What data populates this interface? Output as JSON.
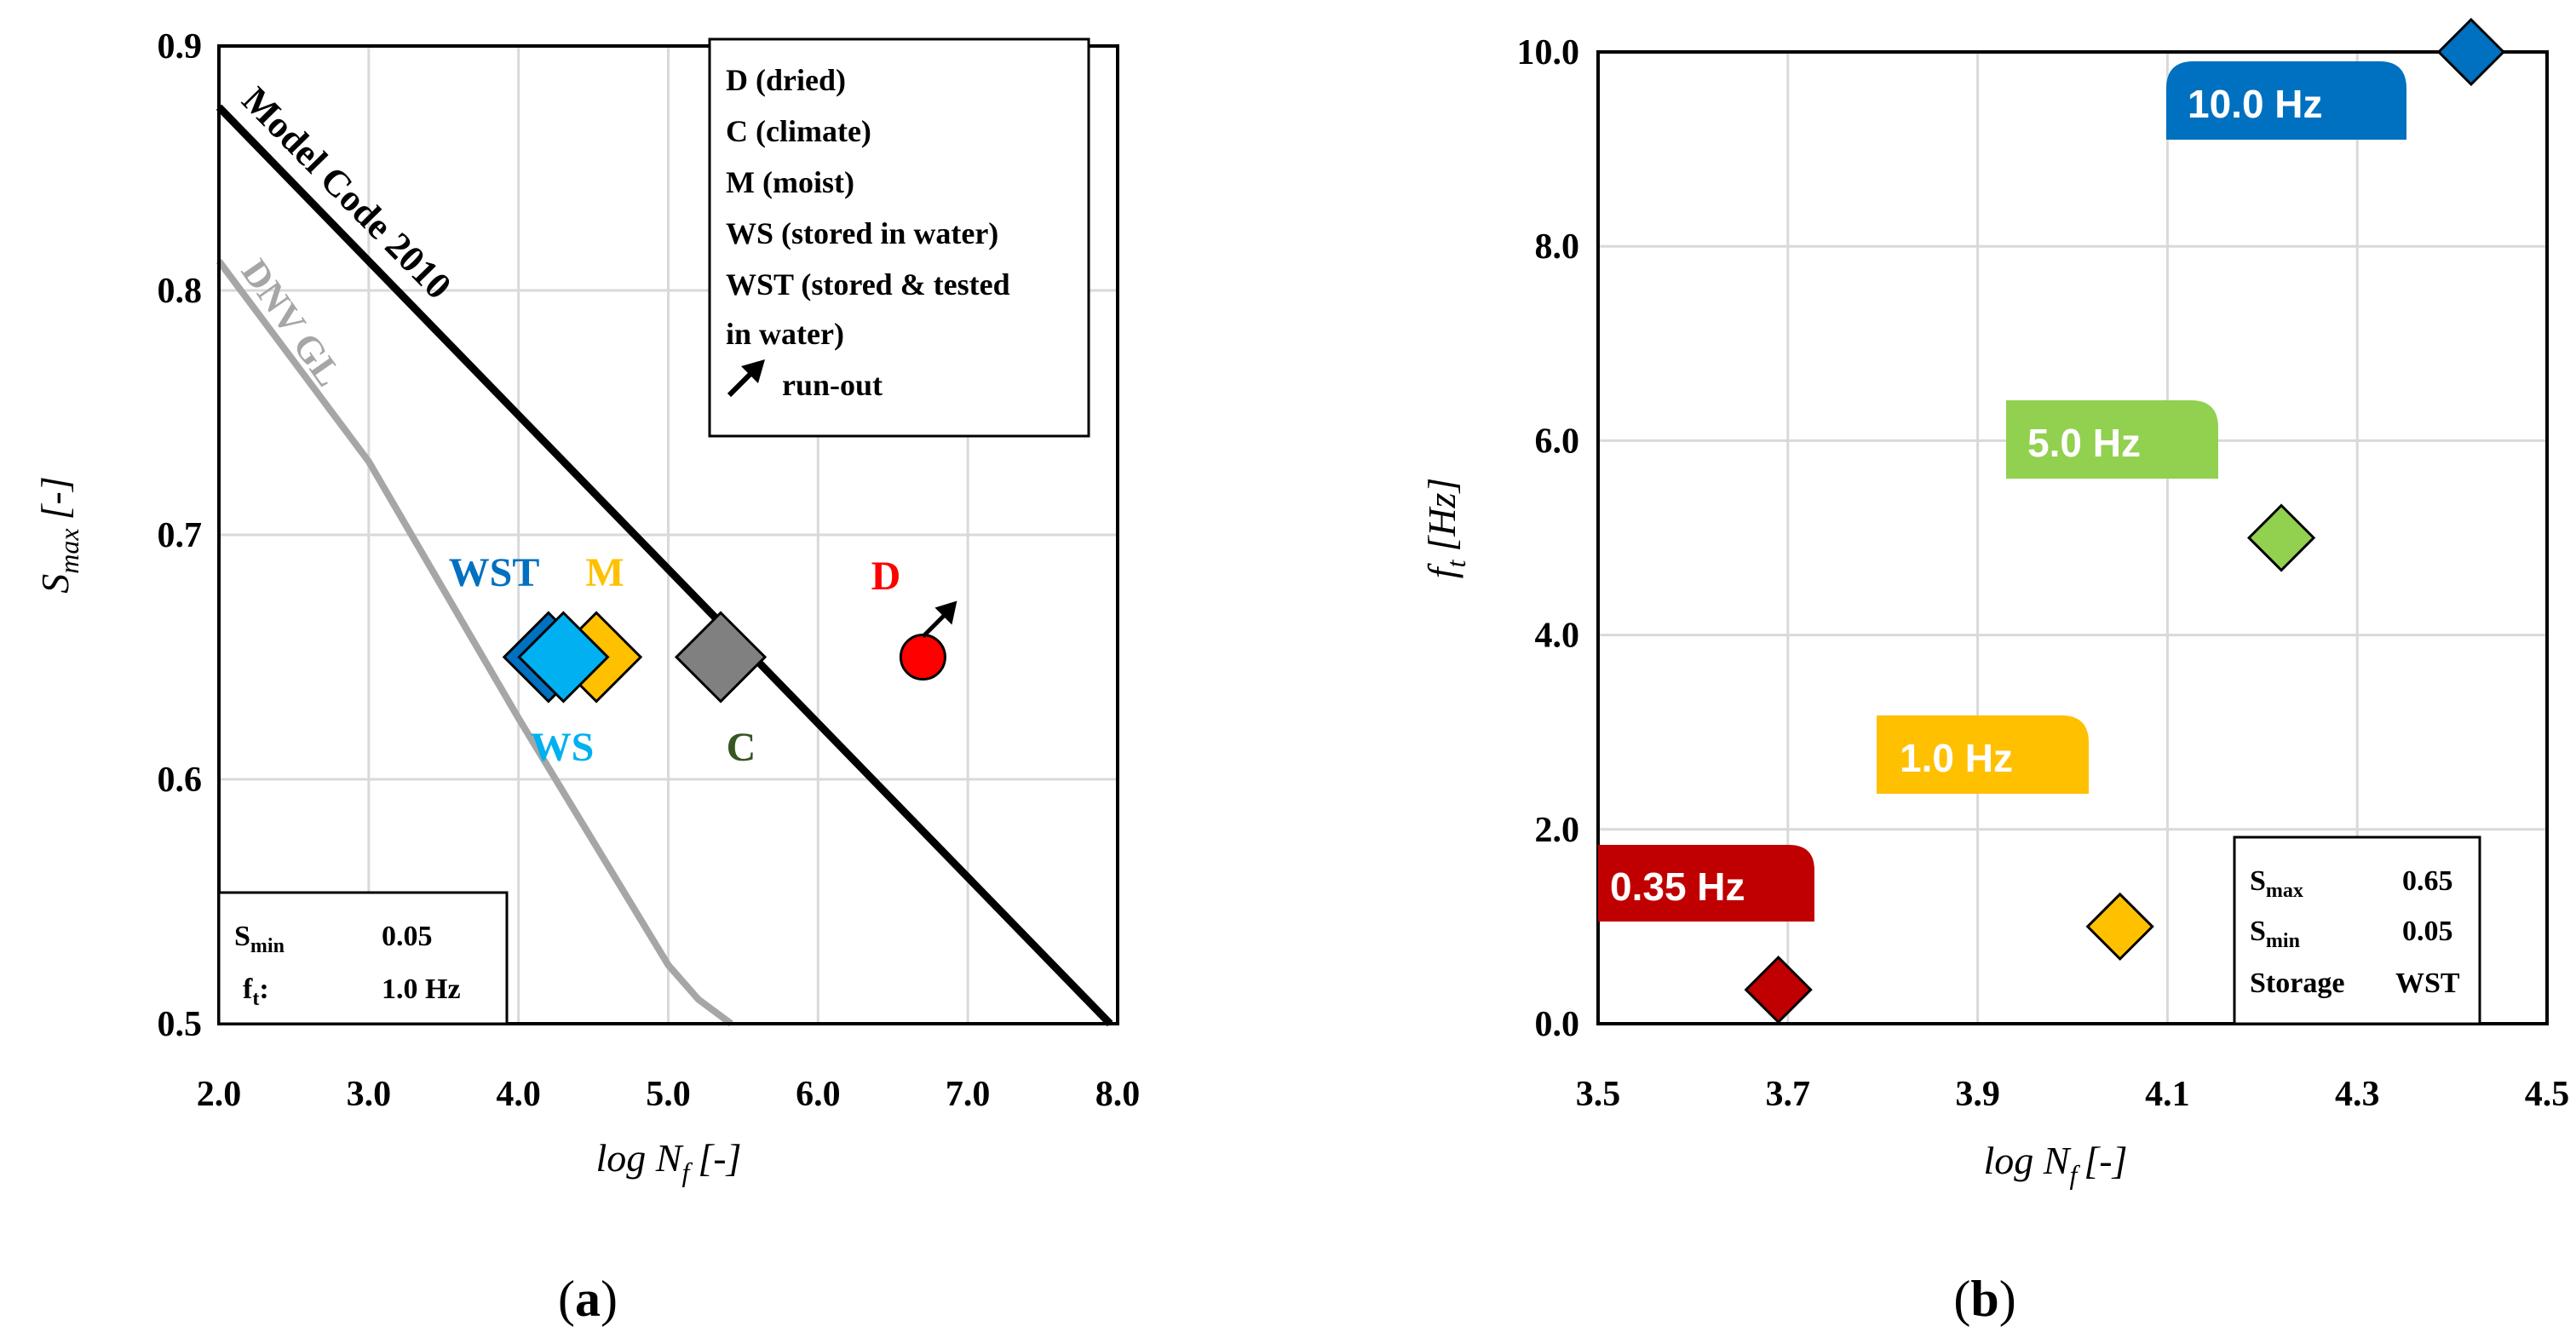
{
  "chart_data": [
    {
      "type": "scatter",
      "panel": "(a)",
      "title": "",
      "xlabel": "log N",
      "xlabel_sub": "f",
      "xlabel_unit": "[-]",
      "ylabel": "S",
      "ylabel_sub": "max",
      "ylabel_unit": "[-]",
      "xlim": [
        2.0,
        8.0
      ],
      "ylim": [
        0.5,
        0.9
      ],
      "xticks": [
        "2.0",
        "3.0",
        "4.0",
        "5.0",
        "6.0",
        "7.0",
        "8.0"
      ],
      "yticks": [
        "0.5",
        "0.6",
        "0.7",
        "0.8",
        "0.9"
      ],
      "grid": true,
      "lines": [
        {
          "name": "Model Code 2010",
          "color": "#000000",
          "x": [
            2.0,
            7.95
          ],
          "y": [
            0.875,
            0.5
          ]
        },
        {
          "name": "DNV GL",
          "color": "#a6a6a6",
          "x": [
            2.0,
            3.0,
            4.0,
            5.0,
            5.2,
            5.42
          ],
          "y": [
            0.812,
            0.73,
            0.625,
            0.524,
            0.51,
            0.5
          ]
        }
      ],
      "series": [
        {
          "name": "D (dried)",
          "short": "D",
          "marker": "circle",
          "color": "#ff0000",
          "x": 6.7,
          "y": 0.65,
          "runout": true
        },
        {
          "name": "C (climate)",
          "short": "C",
          "marker": "diamond",
          "color": "#808080",
          "x": 5.35,
          "y": 0.65
        },
        {
          "name": "M (moist)",
          "short": "M",
          "marker": "diamond",
          "color": "#ffc000",
          "x": 4.52,
          "y": 0.65
        },
        {
          "name": "WST (stored & tested in water)",
          "short": "WST",
          "marker": "diamond",
          "color": "#0070c0",
          "x": 4.2,
          "y": 0.65
        },
        {
          "name": "WS (stored in water)",
          "short": "WS",
          "marker": "diamond",
          "color": "#00b0f0",
          "x": 4.3,
          "y": 0.65
        }
      ],
      "legend": {
        "position": "top-right",
        "entries": [
          {
            "text": "D (dried)",
            "color": "#ff0000"
          },
          {
            "text": "C (climate)",
            "color": "#808080"
          },
          {
            "text": "M (moist)",
            "color": "#ffc000"
          },
          {
            "text": "WS (stored in water)",
            "color": "#00b0f0"
          },
          {
            "text": "WST (stored & tested",
            "color": "#0070c0"
          },
          {
            "text": "in water)",
            "color": "#0070c0"
          },
          {
            "text": "run-out",
            "color": "#000000"
          }
        ]
      },
      "labels": {
        "WST": "WST",
        "M": "M",
        "D": "D",
        "WS": "WS",
        "C": "C",
        "C_color": "#375623"
      },
      "info_box": {
        "rows": [
          {
            "key": "S",
            "sub": "min",
            "suffix": "",
            "value": "0.05"
          },
          {
            "key": "f",
            "sub": "t",
            "suffix": ":",
            "value": "1.0 Hz"
          }
        ]
      }
    },
    {
      "type": "scatter",
      "panel": "(b)",
      "title": "",
      "xlabel": "log N",
      "xlabel_sub": "f",
      "xlabel_unit": "[-]",
      "ylabel": "f",
      "ylabel_sub": "t",
      "ylabel_unit": "[Hz]",
      "xlim": [
        3.5,
        4.5
      ],
      "ylim": [
        0.0,
        10.0
      ],
      "xticks": [
        "3.5",
        "3.7",
        "3.9",
        "4.1",
        "4.3",
        "4.5"
      ],
      "yticks": [
        "0.0",
        "2.0",
        "4.0",
        "6.0",
        "8.0",
        "10.0"
      ],
      "grid": true,
      "points": [
        {
          "label": "0.35 Hz",
          "x": 3.69,
          "y": 0.35,
          "color": "#c00000"
        },
        {
          "label": "1.0 Hz",
          "x": 4.05,
          "y": 1.0,
          "color": "#ffc000"
        },
        {
          "label": "5.0 Hz",
          "x": 4.22,
          "y": 5.0,
          "color": "#92d050"
        },
        {
          "label": "10.0 Hz",
          "x": 4.42,
          "y": 10.0,
          "color": "#0070c0"
        }
      ],
      "info_box": {
        "rows": [
          {
            "key": "S",
            "sub": "max",
            "value": "0.65"
          },
          {
            "key": "S",
            "sub": "min",
            "value": "0.05"
          },
          {
            "key": "Storage",
            "sub": "",
            "value": "WST"
          }
        ]
      }
    }
  ],
  "captions": {
    "a": {
      "open": "(",
      "letter": "a",
      "close": ")"
    },
    "b": {
      "open": "(",
      "letter": "b",
      "close": ")"
    }
  }
}
